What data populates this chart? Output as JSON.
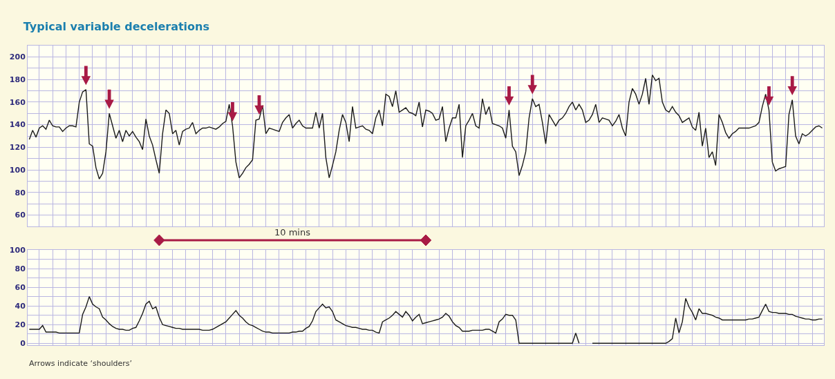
{
  "chart_data": [
    {
      "type": "line",
      "title": "Typical variable decelerations",
      "categories": [
        null,
        null,
        null,
        null,
        null,
        null,
        null,
        null,
        null,
        null,
        null,
        null,
        null,
        null,
        null,
        null,
        null,
        null,
        null,
        null,
        null,
        null,
        null,
        null,
        null,
        null,
        null,
        null,
        null,
        null,
        null,
        null,
        null,
        null,
        null,
        null,
        null,
        null,
        null,
        null,
        null,
        null,
        null,
        null,
        null,
        null,
        null,
        null,
        null,
        null,
        null,
        null,
        null,
        null,
        null,
        null,
        null,
        null,
        null,
        null,
        null,
        null,
        null,
        null,
        null,
        null,
        null,
        null,
        null,
        null,
        null,
        null,
        null,
        null,
        null,
        null,
        null,
        null,
        null,
        null,
        null,
        null,
        null,
        null,
        null,
        null,
        null,
        null,
        null,
        null,
        null,
        null,
        null,
        null,
        null,
        null,
        null,
        null,
        null,
        null,
        null,
        null,
        null,
        null,
        null,
        null,
        null,
        null,
        null,
        null,
        null,
        null,
        null,
        null,
        null,
        null,
        null,
        null,
        null,
        null,
        null,
        null,
        null,
        null,
        null,
        null,
        null,
        null,
        null,
        null,
        null,
        null,
        null,
        null,
        null,
        null,
        null,
        null,
        null,
        null,
        null,
        null,
        null,
        null,
        null,
        null,
        null,
        null,
        null,
        null,
        null,
        null,
        null,
        null,
        null,
        null,
        null,
        null,
        null,
        null,
        null,
        null,
        null,
        null,
        null,
        null,
        null,
        null,
        null,
        null,
        null,
        null,
        null,
        null,
        null,
        null,
        null,
        null,
        null,
        null,
        null,
        null,
        null,
        null,
        null,
        null,
        null,
        null,
        null,
        null,
        null,
        null,
        null,
        null,
        null,
        null,
        null,
        null,
        null,
        null,
        null,
        null,
        null,
        null,
        null,
        null,
        null,
        null,
        null,
        null,
        null,
        null,
        null,
        null,
        null,
        null,
        null,
        null,
        null,
        null,
        null,
        null,
        null,
        null,
        null,
        null,
        null,
        null,
        null,
        null,
        null,
        null,
        null,
        null,
        null,
        null,
        null,
        null,
        null
      ],
      "series": [
        {
          "color": "#1a1a1a",
          "values": [
            127,
            135,
            129,
            137,
            139,
            136,
            144,
            139,
            138,
            138,
            134,
            137,
            139,
            139,
            138,
            160,
            169,
            171,
            123,
            121,
            102,
            92,
            97,
            116,
            150,
            139,
            128,
            135,
            125,
            135,
            130,
            134,
            129,
            125,
            118,
            145,
            130,
            122,
            109,
            97,
            132,
            153,
            150,
            132,
            135,
            122,
            134,
            136,
            137,
            142,
            132,
            135,
            137,
            137,
            138,
            137,
            136,
            138,
            141,
            143,
            158,
            139,
            107,
            93,
            97,
            102,
            105,
            109,
            144,
            145,
            157,
            132,
            137,
            136,
            135,
            134,
            142,
            146,
            149,
            137,
            141,
            144,
            139,
            137,
            137,
            137,
            151,
            137,
            150,
            111,
            93,
            104,
            116,
            135,
            149,
            142,
            125,
            156,
            137,
            138,
            139,
            136,
            135,
            132,
            146,
            153,
            139,
            167,
            165,
            156,
            170,
            151,
            153,
            155,
            151,
            150,
            148,
            160,
            138,
            153,
            152,
            150,
            144,
            145,
            156,
            125,
            137,
            146,
            146,
            158,
            111,
            139,
            144,
            150,
            139,
            137,
            163,
            149,
            156,
            141,
            140,
            139,
            137,
            128,
            153,
            121,
            116,
            95,
            104,
            116,
            146,
            163,
            156,
            158,
            142,
            123,
            149,
            144,
            139,
            144,
            146,
            150,
            156,
            160,
            153,
            158,
            153,
            142,
            144,
            149,
            158,
            142,
            146,
            145,
            144,
            139,
            143,
            149,
            137,
            130,
            160,
            172,
            167,
            158,
            167,
            181,
            158,
            184,
            179,
            181,
            160,
            153,
            151,
            156,
            151,
            148,
            142,
            144,
            146,
            138,
            135,
            151,
            121,
            137,
            111,
            116,
            104,
            149,
            142,
            133,
            128,
            132,
            134,
            137,
            137,
            137,
            137,
            138,
            139,
            142,
            156,
            167,
            153,
            107,
            99,
            101,
            102,
            103,
            149,
            162,
            130,
            123,
            132,
            130,
            132,
            135,
            138,
            139,
            137
          ]
        }
      ],
      "ylim": [
        50,
        210
      ],
      "yticks": [
        60,
        {
          "value": 70,
          "label": null
        },
        80,
        {
          "value": 90,
          "label": null
        },
        100,
        {
          "value": 110,
          "label": null
        },
        120,
        {
          "value": 130,
          "label": null
        },
        140,
        {
          "value": 150,
          "label": null
        },
        160,
        {
          "value": 170,
          "label": null
        },
        180,
        {
          "value": 190,
          "label": null
        },
        200
      ],
      "tick_labels": "y",
      "grid": true,
      "annotations": [
        "10 mins"
      ]
    },
    {
      "type": "line",
      "categories": [
        null,
        null,
        null,
        null,
        null,
        null,
        null,
        null,
        null,
        null,
        null,
        null,
        null,
        null,
        null,
        null,
        null,
        null,
        null,
        null,
        null,
        null,
        null,
        null,
        null,
        null,
        null,
        null,
        null,
        null,
        null,
        null,
        null,
        null,
        null,
        null,
        null,
        null,
        null,
        null,
        null,
        null,
        null,
        null,
        null,
        null,
        null,
        null,
        null,
        null,
        null,
        null,
        null,
        null,
        null,
        null,
        null,
        null,
        null,
        null,
        null,
        null,
        null,
        null,
        null,
        null,
        null,
        null,
        null,
        null,
        null,
        null,
        null,
        null,
        null,
        null,
        null,
        null,
        null,
        null,
        null,
        null,
        null,
        null,
        null,
        null,
        null,
        null,
        null,
        null,
        null,
        null,
        null,
        null,
        null,
        null,
        null,
        null,
        null,
        null,
        null,
        null,
        null,
        null,
        null,
        null,
        null,
        null,
        null,
        null,
        null,
        null,
        null,
        null,
        null,
        null,
        null,
        null,
        null,
        null,
        null,
        null,
        null,
        null,
        null,
        null,
        null,
        null,
        null,
        null,
        null,
        null,
        null,
        null,
        null,
        null,
        null,
        null,
        null,
        null,
        null,
        null,
        null,
        null,
        null,
        null,
        null,
        null,
        null,
        null,
        null,
        null,
        null,
        null,
        null,
        null,
        null,
        null,
        null,
        null,
        null,
        null,
        null,
        null,
        null,
        null,
        null,
        null,
        null,
        null,
        null,
        null,
        null,
        null,
        null,
        null,
        null,
        null,
        null,
        null,
        null,
        null,
        null,
        null,
        null,
        null,
        null,
        null,
        null,
        null,
        null,
        null,
        null,
        null,
        null,
        null,
        null,
        null,
        null,
        null,
        null,
        null,
        null,
        null,
        null,
        null,
        null,
        null,
        null,
        null,
        null,
        null,
        null,
        null,
        null,
        null,
        null,
        null,
        null,
        null,
        null,
        null,
        null,
        null,
        null,
        null,
        null,
        null,
        null,
        null,
        null,
        null,
        null,
        null,
        null,
        null,
        null,
        null,
        null
      ],
      "series": [
        {
          "color": "#1a1a1a",
          "values": [
            15,
            15,
            15,
            15,
            19,
            12,
            12,
            12,
            12,
            11,
            11,
            11,
            11,
            11,
            11,
            11,
            31,
            39,
            50,
            42,
            39,
            37,
            28,
            25,
            21,
            18,
            16,
            15,
            15,
            14,
            14,
            16,
            17,
            24,
            32,
            42,
            45,
            37,
            39,
            28,
            20,
            19,
            18,
            17,
            16,
            16,
            15,
            15,
            15,
            15,
            15,
            15,
            14,
            14,
            14,
            15,
            17,
            19,
            21,
            23,
            27,
            31,
            35,
            30,
            27,
            23,
            20,
            19,
            17,
            15,
            13,
            12,
            12,
            11,
            11,
            11,
            11,
            11,
            11,
            12,
            12,
            13,
            13,
            16,
            18,
            24,
            34,
            38,
            42,
            38,
            39,
            34,
            25,
            23,
            21,
            19,
            18,
            17,
            17,
            16,
            15,
            15,
            14,
            14,
            12,
            11,
            23,
            25,
            27,
            30,
            34,
            31,
            28,
            34,
            30,
            24,
            28,
            31,
            21,
            22,
            23,
            24,
            25,
            26,
            28,
            32,
            29,
            23,
            19,
            17,
            13,
            13,
            13,
            14,
            14,
            14,
            14,
            15,
            15,
            13,
            11,
            23,
            26,
            31,
            30,
            30,
            25,
            0,
            0,
            0,
            0,
            0,
            0,
            0,
            0,
            0,
            0,
            0,
            0,
            0,
            0,
            0,
            0,
            0,
            11,
            0,
            null,
            null,
            null,
            0,
            0,
            0,
            0,
            0,
            0,
            0,
            0,
            0,
            0,
            0,
            0,
            0,
            0,
            0,
            0,
            0,
            0,
            0,
            0,
            0,
            0,
            0,
            2,
            5,
            27,
            11,
            23,
            48,
            39,
            33,
            25,
            37,
            32,
            32,
            31,
            30,
            28,
            27,
            25,
            25,
            25,
            25,
            25,
            25,
            25,
            25,
            26,
            26,
            27,
            28,
            35,
            42,
            34,
            33,
            33,
            32,
            32,
            32,
            31,
            31,
            29,
            28,
            27,
            26,
            26,
            25,
            25,
            26,
            26
          ]
        }
      ],
      "ylim": [
        -2,
        100
      ],
      "yticks": [
        0,
        {
          "value": 10,
          "label": null
        },
        20,
        {
          "value": 30,
          "label": null
        },
        40,
        {
          "value": 50,
          "label": null
        },
        60,
        {
          "value": 70,
          "label": null
        },
        80,
        {
          "value": 90,
          "label": null
        },
        100
      ],
      "tick_labels": "y",
      "grid": true,
      "annotations": [
        "Arrows indicate ‘shoulders’"
      ]
    }
  ]
}
